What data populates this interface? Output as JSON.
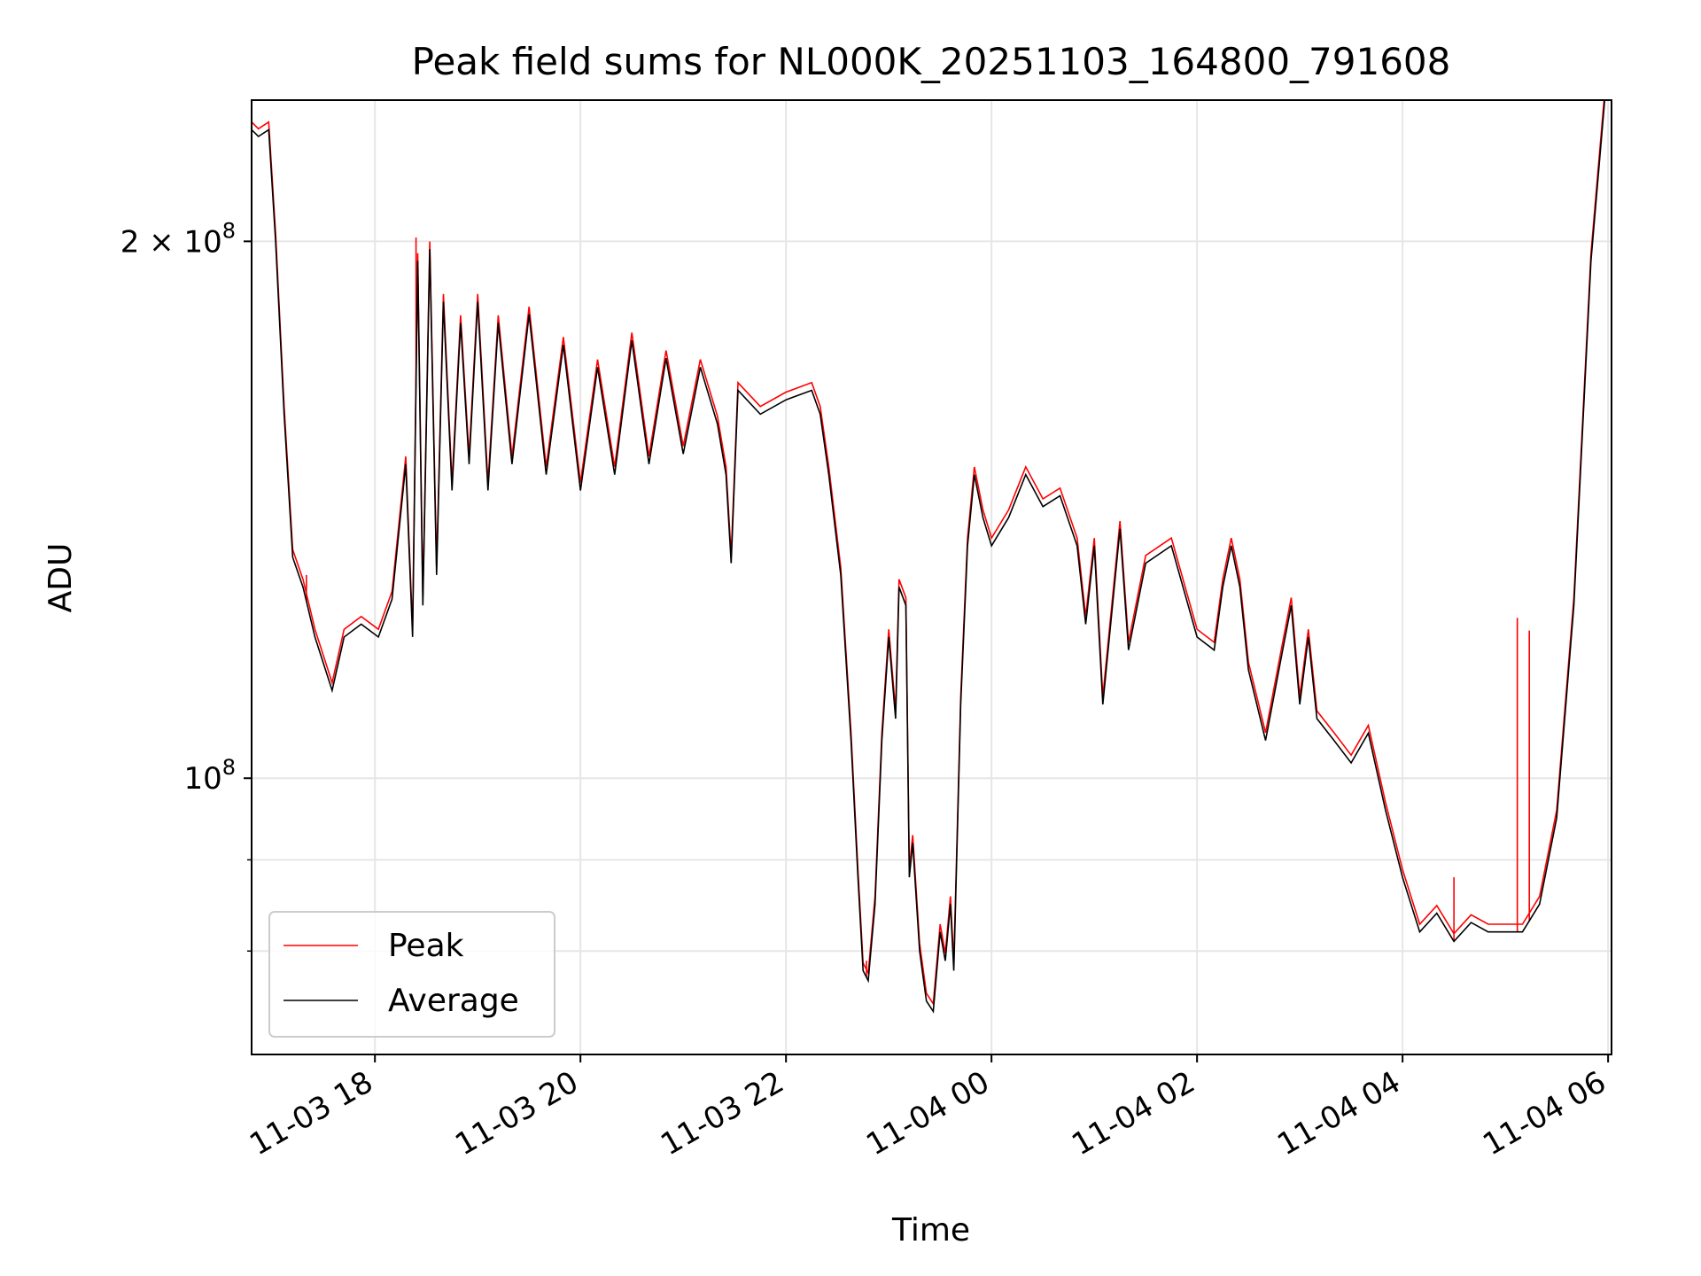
{
  "chart_data": {
    "type": "line",
    "title": "Peak field sums for NL000K_20251103_164800_791608",
    "xlabel": "Time",
    "ylabel": "ADU",
    "y_scale": "log",
    "ylim": [
      70000000,
      240000000
    ],
    "xlim": [
      "2025-11-03 16:48",
      "2025-11-04 06:02"
    ],
    "grid": true,
    "legend_position": "lower-left",
    "x_ticks": [
      {
        "t": "2025-11-03 18:00",
        "label": "11-03 18"
      },
      {
        "t": "2025-11-03 20:00",
        "label": "11-03 20"
      },
      {
        "t": "2025-11-03 22:00",
        "label": "11-03 22"
      },
      {
        "t": "2025-11-04 00:00",
        "label": "11-04 00"
      },
      {
        "t": "2025-11-04 02:00",
        "label": "11-04 02"
      },
      {
        "t": "2025-11-04 04:00",
        "label": "11-04 04"
      },
      {
        "t": "2025-11-04 06:00",
        "label": "11-04 06"
      }
    ],
    "y_ticks": [
      {
        "value": 100000000,
        "base": "10",
        "exp": "8",
        "mult": ""
      },
      {
        "value": 200000000,
        "base": "10",
        "exp": "8",
        "mult": "2 × "
      }
    ],
    "y_minor_ticks": [
      80000000,
      90000000
    ],
    "series": [
      {
        "name": "Average",
        "color": "#000000",
        "points": [
          [
            "2025-11-03 16:48",
            231000000
          ],
          [
            "2025-11-03 16:52",
            229000000
          ],
          [
            "2025-11-03 16:58",
            231000000
          ],
          [
            "2025-11-03 17:02",
            200000000
          ],
          [
            "2025-11-03 17:07",
            160000000
          ],
          [
            "2025-11-03 17:12",
            133000000
          ],
          [
            "2025-11-03 17:18",
            128000000
          ],
          [
            "2025-11-03 17:25",
            120000000
          ],
          [
            "2025-11-03 17:35",
            112000000
          ],
          [
            "2025-11-03 17:42",
            120000000
          ],
          [
            "2025-11-03 17:52",
            122000000
          ],
          [
            "2025-11-03 18:02",
            120000000
          ],
          [
            "2025-11-03 18:10",
            126000000
          ],
          [
            "2025-11-03 18:18",
            150000000
          ],
          [
            "2025-11-03 18:22",
            120000000
          ],
          [
            "2025-11-03 18:25",
            195000000
          ],
          [
            "2025-11-03 18:28",
            125000000
          ],
          [
            "2025-11-03 18:32",
            198000000
          ],
          [
            "2025-11-03 18:36",
            130000000
          ],
          [
            "2025-11-03 18:40",
            185000000
          ],
          [
            "2025-11-03 18:45",
            145000000
          ],
          [
            "2025-11-03 18:50",
            180000000
          ],
          [
            "2025-11-03 18:55",
            150000000
          ],
          [
            "2025-11-03 19:00",
            185000000
          ],
          [
            "2025-11-03 19:06",
            145000000
          ],
          [
            "2025-11-03 19:12",
            180000000
          ],
          [
            "2025-11-03 19:20",
            150000000
          ],
          [
            "2025-11-03 19:30",
            182000000
          ],
          [
            "2025-11-03 19:40",
            148000000
          ],
          [
            "2025-11-03 19:50",
            175000000
          ],
          [
            "2025-11-03 20:00",
            145000000
          ],
          [
            "2025-11-03 20:10",
            170000000
          ],
          [
            "2025-11-03 20:20",
            148000000
          ],
          [
            "2025-11-03 20:30",
            176000000
          ],
          [
            "2025-11-03 20:40",
            150000000
          ],
          [
            "2025-11-03 20:50",
            172000000
          ],
          [
            "2025-11-03 21:00",
            152000000
          ],
          [
            "2025-11-03 21:10",
            170000000
          ],
          [
            "2025-11-03 21:20",
            158000000
          ],
          [
            "2025-11-03 21:25",
            148000000
          ],
          [
            "2025-11-03 21:28",
            132000000
          ],
          [
            "2025-11-03 21:32",
            165000000
          ],
          [
            "2025-11-03 21:45",
            160000000
          ],
          [
            "2025-11-03 22:00",
            163000000
          ],
          [
            "2025-11-03 22:15",
            165000000
          ],
          [
            "2025-11-03 22:20",
            160000000
          ],
          [
            "2025-11-03 22:25",
            148000000
          ],
          [
            "2025-11-03 22:32",
            130000000
          ],
          [
            "2025-11-03 22:38",
            105000000
          ],
          [
            "2025-11-03 22:42",
            88000000
          ],
          [
            "2025-11-03 22:45",
            78000000
          ],
          [
            "2025-11-03 22:48",
            77000000
          ],
          [
            "2025-11-03 22:52",
            85000000
          ],
          [
            "2025-11-03 22:56",
            105000000
          ],
          [
            "2025-11-03 23:00",
            120000000
          ],
          [
            "2025-11-03 23:04",
            108000000
          ],
          [
            "2025-11-03 23:06",
            128000000
          ],
          [
            "2025-11-03 23:10",
            125000000
          ],
          [
            "2025-11-03 23:12",
            88000000
          ],
          [
            "2025-11-03 23:14",
            92000000
          ],
          [
            "2025-11-03 23:18",
            80000000
          ],
          [
            "2025-11-03 23:22",
            75000000
          ],
          [
            "2025-11-03 23:26",
            74000000
          ],
          [
            "2025-11-03 23:30",
            82000000
          ],
          [
            "2025-11-03 23:33",
            79000000
          ],
          [
            "2025-11-03 23:36",
            85000000
          ],
          [
            "2025-11-03 23:38",
            78000000
          ],
          [
            "2025-11-03 23:42",
            110000000
          ],
          [
            "2025-11-03 23:46",
            135000000
          ],
          [
            "2025-11-03 23:50",
            148000000
          ],
          [
            "2025-11-03 23:55",
            140000000
          ],
          [
            "2025-11-04 00:00",
            135000000
          ],
          [
            "2025-11-04 00:10",
            140000000
          ],
          [
            "2025-11-04 00:20",
            148000000
          ],
          [
            "2025-11-04 00:30",
            142000000
          ],
          [
            "2025-11-04 00:40",
            144000000
          ],
          [
            "2025-11-04 00:50",
            135000000
          ],
          [
            "2025-11-04 00:55",
            122000000
          ],
          [
            "2025-11-04 01:00",
            135000000
          ],
          [
            "2025-11-04 01:05",
            110000000
          ],
          [
            "2025-11-04 01:15",
            138000000
          ],
          [
            "2025-11-04 01:20",
            118000000
          ],
          [
            "2025-11-04 01:30",
            132000000
          ],
          [
            "2025-11-04 01:45",
            135000000
          ],
          [
            "2025-11-04 02:00",
            120000000
          ],
          [
            "2025-11-04 02:10",
            118000000
          ],
          [
            "2025-11-04 02:15",
            128000000
          ],
          [
            "2025-11-04 02:20",
            135000000
          ],
          [
            "2025-11-04 02:25",
            128000000
          ],
          [
            "2025-11-04 02:30",
            115000000
          ],
          [
            "2025-11-04 02:40",
            105000000
          ],
          [
            "2025-11-04 02:50",
            118000000
          ],
          [
            "2025-11-04 02:55",
            125000000
          ],
          [
            "2025-11-04 03:00",
            110000000
          ],
          [
            "2025-11-04 03:05",
            120000000
          ],
          [
            "2025-11-04 03:10",
            108000000
          ],
          [
            "2025-11-04 03:20",
            105000000
          ],
          [
            "2025-11-04 03:30",
            102000000
          ],
          [
            "2025-11-04 03:40",
            106000000
          ],
          [
            "2025-11-04 03:50",
            96000000
          ],
          [
            "2025-11-04 04:00",
            88000000
          ],
          [
            "2025-11-04 04:10",
            82000000
          ],
          [
            "2025-11-04 04:20",
            84000000
          ],
          [
            "2025-11-04 04:30",
            81000000
          ],
          [
            "2025-11-04 04:40",
            83000000
          ],
          [
            "2025-11-04 04:50",
            82000000
          ],
          [
            "2025-11-04 05:00",
            82000000
          ],
          [
            "2025-11-04 05:10",
            82000000
          ],
          [
            "2025-11-04 05:20",
            85000000
          ],
          [
            "2025-11-04 05:30",
            95000000
          ],
          [
            "2025-11-04 05:40",
            125000000
          ],
          [
            "2025-11-04 05:50",
            195000000
          ],
          [
            "2025-11-04 05:58",
            240000000
          ]
        ]
      },
      {
        "name": "Peak",
        "color": "#ff0000",
        "spikes": [
          [
            "2025-11-03 17:20",
            130000000
          ],
          [
            "2025-11-03 18:24",
            201000000
          ],
          [
            "2025-11-03 22:47",
            79000000
          ],
          [
            "2025-11-04 04:30",
            88000000
          ],
          [
            "2025-11-04 05:07",
            123000000
          ],
          [
            "2025-11-04 05:14",
            121000000
          ]
        ]
      }
    ]
  }
}
